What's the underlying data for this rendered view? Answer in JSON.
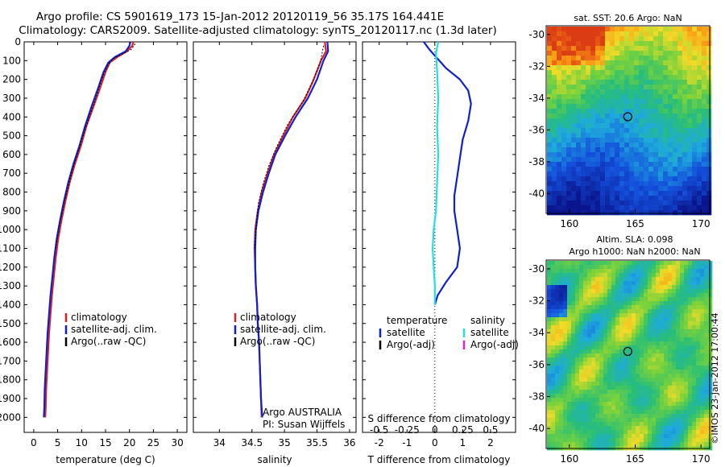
{
  "title_line1": "Argo profile: CS 5901619_173 15-Jan-2012 20120119_56 35.17S 164.441E",
  "title_line2": "Climatology: CARS2009. Satellite-adjusted climatology: synTS_20120117.nc (1.3d later)",
  "colors": {
    "climatology": "#e02020",
    "satellite": "#1020d0",
    "argo": "#000000",
    "salinity_sat": "#20e0e0",
    "salinity_argo": "#e020e0"
  },
  "chart_data": [
    {
      "type": "line",
      "id": "temperature",
      "xlabel": "temperature (deg C)",
      "ylabel": "",
      "xlim": [
        -2,
        32
      ],
      "ylim": [
        2080,
        0
      ],
      "xticks": [
        "0",
        "5",
        "10",
        "15",
        "20",
        "25",
        "30"
      ],
      "yticks": [
        "0",
        "100",
        "200",
        "300",
        "400",
        "500",
        "600",
        "700",
        "800",
        "900",
        "1000",
        "1100",
        "1200",
        "1300",
        "1400",
        "1500",
        "1600",
        "1700",
        "1800",
        "1900",
        "2000"
      ],
      "legend": [
        "climatology",
        "satellite-adj. clim.",
        "Argo(..raw -QC)"
      ],
      "series": [
        {
          "name": "climatology",
          "points": [
            [
              20.8,
              0
            ],
            [
              20.6,
              20
            ],
            [
              19.5,
              50
            ],
            [
              17.5,
              80
            ],
            [
              15.9,
              110
            ],
            [
              15.0,
              160
            ],
            [
              13.8,
              250
            ],
            [
              12.4,
              350
            ],
            [
              11.0,
              450
            ],
            [
              9.9,
              550
            ],
            [
              8.6,
              650
            ],
            [
              7.5,
              750
            ],
            [
              6.6,
              850
            ],
            [
              5.8,
              950
            ],
            [
              5.1,
              1050
            ],
            [
              4.6,
              1150
            ],
            [
              4.2,
              1250
            ],
            [
              3.8,
              1350
            ],
            [
              3.5,
              1450
            ],
            [
              3.2,
              1550
            ],
            [
              3.0,
              1650
            ],
            [
              2.8,
              1750
            ],
            [
              2.6,
              1850
            ],
            [
              2.5,
              1950
            ],
            [
              2.4,
              2000
            ]
          ]
        },
        {
          "name": "satellite-adj. clim.",
          "points": [
            [
              20.2,
              0
            ],
            [
              20.0,
              20
            ],
            [
              19.2,
              50
            ],
            [
              17.0,
              80
            ],
            [
              15.6,
              110
            ],
            [
              14.6,
              160
            ],
            [
              13.4,
              250
            ],
            [
              12.0,
              350
            ],
            [
              10.7,
              450
            ],
            [
              9.6,
              550
            ],
            [
              8.3,
              650
            ],
            [
              7.2,
              750
            ],
            [
              6.3,
              850
            ],
            [
              5.5,
              950
            ],
            [
              4.8,
              1050
            ],
            [
              4.3,
              1150
            ],
            [
              3.9,
              1250
            ],
            [
              3.5,
              1350
            ],
            [
              3.2,
              1450
            ],
            [
              2.9,
              1550
            ],
            [
              2.7,
              1650
            ],
            [
              2.5,
              1750
            ],
            [
              2.3,
              1850
            ],
            [
              2.2,
              1950
            ],
            [
              2.1,
              2000
            ]
          ]
        },
        {
          "name": "Argo(..raw -QC)",
          "points": [
            [
              21.2,
              10
            ],
            [
              20.4,
              40
            ],
            [
              16.5,
              90
            ],
            [
              15.4,
              130
            ],
            [
              14.2,
              200
            ],
            [
              13.0,
              300
            ],
            [
              11.6,
              400
            ],
            [
              10.3,
              500
            ],
            [
              9.1,
              600
            ],
            [
              7.9,
              700
            ],
            [
              6.9,
              800
            ],
            [
              6.0,
              900
            ],
            [
              5.2,
              1000
            ],
            [
              4.6,
              1100
            ]
          ]
        }
      ]
    },
    {
      "type": "line",
      "id": "salinity",
      "xlabel": "salinity",
      "xlim": [
        33.6,
        36.1
      ],
      "ylim": [
        2080,
        0
      ],
      "xticks": [
        "34",
        "34.5",
        "35",
        "35.5",
        "36"
      ],
      "legend": [
        "climatology",
        "satellite-adj. clim.",
        "Argo(..raw -QC)"
      ],
      "annotation": [
        "Argo AUSTRALIA",
        "PI: Susan Wijffels"
      ],
      "series": [
        {
          "name": "climatology",
          "points": [
            [
              35.62,
              0
            ],
            [
              35.64,
              50
            ],
            [
              35.56,
              100
            ],
            [
              35.45,
              200
            ],
            [
              35.32,
              300
            ],
            [
              35.13,
              400
            ],
            [
              34.98,
              500
            ],
            [
              34.84,
              600
            ],
            [
              34.74,
              700
            ],
            [
              34.65,
              800
            ],
            [
              34.59,
              900
            ],
            [
              34.55,
              1000
            ],
            [
              34.54,
              1100
            ],
            [
              34.55,
              1200
            ],
            [
              34.56,
              1300
            ],
            [
              34.58,
              1400
            ],
            [
              34.59,
              1500
            ],
            [
              34.61,
              1600
            ],
            [
              34.62,
              1700
            ],
            [
              34.63,
              1800
            ],
            [
              34.64,
              1900
            ],
            [
              34.65,
              2000
            ]
          ]
        },
        {
          "name": "satellite-adj. clim.",
          "points": [
            [
              35.66,
              0
            ],
            [
              35.67,
              50
            ],
            [
              35.6,
              100
            ],
            [
              35.5,
              200
            ],
            [
              35.36,
              300
            ],
            [
              35.17,
              400
            ],
            [
              35.01,
              500
            ],
            [
              34.86,
              600
            ],
            [
              34.76,
              700
            ],
            [
              34.67,
              800
            ],
            [
              34.6,
              900
            ],
            [
              34.56,
              1000
            ],
            [
              34.55,
              1100
            ],
            [
              34.55,
              1200
            ],
            [
              34.56,
              1300
            ],
            [
              34.58,
              1400
            ],
            [
              34.59,
              1500
            ],
            [
              34.61,
              1600
            ],
            [
              34.62,
              1700
            ],
            [
              34.63,
              1800
            ],
            [
              34.64,
              1900
            ],
            [
              34.66,
              2000
            ]
          ]
        },
        {
          "name": "Argo(..raw -QC)",
          "points": [
            [
              35.6,
              20
            ],
            [
              35.55,
              110
            ],
            [
              35.42,
              220
            ],
            [
              35.28,
              320
            ],
            [
              35.05,
              440
            ],
            [
              34.88,
              560
            ],
            [
              34.76,
              660
            ],
            [
              34.67,
              760
            ],
            [
              34.6,
              860
            ],
            [
              34.57,
              960
            ],
            [
              34.55,
              1060
            ],
            [
              34.54,
              1100
            ]
          ]
        }
      ]
    },
    {
      "type": "line",
      "id": "difference",
      "xlabel": "T difference from climatology",
      "xlabel_top": "S difference from climatology",
      "xlim": [
        -2.6,
        2.9
      ],
      "ylim": [
        2080,
        0
      ],
      "xticks": [
        "-2",
        "-1",
        "0",
        "1",
        "2"
      ],
      "xticks_top": [
        "-0.5",
        "-0.25",
        "0",
        "0.25",
        "0.5"
      ],
      "legend_left_title": "temperature",
      "legend_right_title": "salinity",
      "legend_left": [
        "satellite",
        "Argo(-adj)"
      ],
      "legend_right": [
        "satellite",
        "Argo(-adj)"
      ],
      "series": [
        {
          "name": "temperature satellite",
          "points": [
            [
              -0.4,
              0
            ],
            [
              -0.2,
              40
            ],
            [
              0.1,
              90
            ],
            [
              0.4,
              140
            ],
            [
              0.9,
              200
            ],
            [
              1.2,
              260
            ],
            [
              1.3,
              330
            ],
            [
              1.2,
              420
            ],
            [
              1.0,
              520
            ],
            [
              0.9,
              620
            ],
            [
              0.8,
              720
            ],
            [
              0.7,
              820
            ],
            [
              0.7,
              900
            ],
            [
              0.8,
              1000
            ],
            [
              0.9,
              1100
            ],
            [
              0.8,
              1200
            ],
            [
              0.4,
              1280
            ],
            [
              0.1,
              1350
            ],
            [
              0.0,
              1400
            ]
          ]
        },
        {
          "name": "salinity satellite",
          "points": [
            [
              0.03,
              0
            ],
            [
              0.01,
              60
            ],
            [
              0.02,
              150
            ],
            [
              0.03,
              300
            ],
            [
              0.02,
              450
            ],
            [
              0.03,
              600
            ],
            [
              0.02,
              750
            ],
            [
              0.01,
              900
            ],
            [
              -0.01,
              1000
            ],
            [
              -0.02,
              1100
            ],
            [
              -0.01,
              1200
            ],
            [
              0.0,
              1300
            ],
            [
              0.0,
              1400
            ]
          ]
        }
      ]
    },
    {
      "type": "heatmap",
      "id": "sst-map",
      "title": "sat. SST: 20.6  Argo: NaN",
      "xlim": [
        158.3,
        170.6
      ],
      "ylim": [
        -41.2,
        -29.5
      ],
      "xticks": [
        "160",
        "165",
        "170"
      ],
      "yticks": [
        "-30",
        "-32",
        "-34",
        "-36",
        "-38",
        "-40"
      ],
      "marker": {
        "lon": 164.44,
        "lat": -35.17
      }
    },
    {
      "type": "heatmap",
      "id": "sla-map",
      "title_line1": "Altim. SLA: 0.098",
      "title_line2": "Argo h1000: NaN h2000: NaN",
      "xlim": [
        158.3,
        170.6
      ],
      "ylim": [
        -41.2,
        -29.5
      ],
      "xticks": [
        "160",
        "165",
        "170"
      ],
      "yticks": [
        "-30",
        "-32",
        "-34",
        "-36",
        "-38",
        "-40"
      ],
      "marker": {
        "lon": 164.44,
        "lat": -35.17
      }
    }
  ],
  "credit": "©IMOS 23-Jan-2012 17:00:44"
}
